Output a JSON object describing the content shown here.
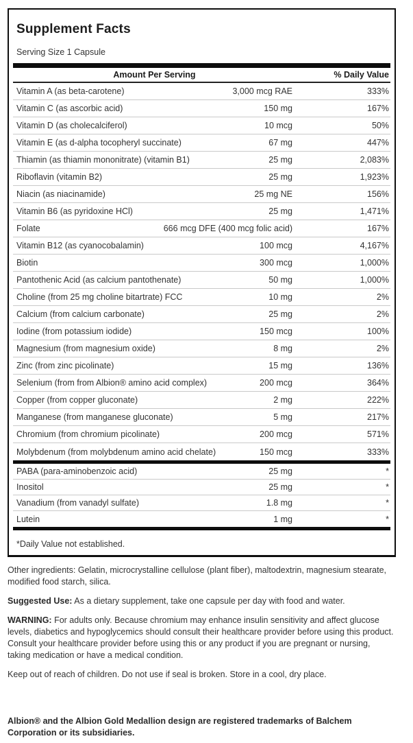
{
  "panel": {
    "title": "Supplement Facts",
    "serving_size": "Serving Size 1 Capsule",
    "columns": {
      "amount": "Amount Per Serving",
      "dv": "% Daily Value"
    },
    "rows": [
      {
        "label": "Vitamin A (as beta-carotene)",
        "amount": "3,000 mcg RAE",
        "dv": "333%"
      },
      {
        "label": "Vitamin C (as ascorbic acid)",
        "amount": "150 mg",
        "dv": "167%"
      },
      {
        "label": "Vitamin D (as cholecalciferol)",
        "amount": "10 mcg",
        "dv": "50%"
      },
      {
        "label": "Vitamin E (as d-alpha tocopheryl succinate)",
        "amount": "67 mg",
        "dv": "447%"
      },
      {
        "label": "Thiamin (as thiamin mononitrate) (vitamin B1)",
        "amount": "25 mg",
        "dv": "2,083%"
      },
      {
        "label": "Riboflavin (vitamin B2)",
        "amount": "25 mg",
        "dv": "1,923%"
      },
      {
        "label": "Niacin (as niacinamide)",
        "amount": "25 mg NE",
        "dv": "156%"
      },
      {
        "label": "Vitamin B6 (as pyridoxine HCl)",
        "amount": "25 mg",
        "dv": "1,471%"
      },
      {
        "label": "Folate",
        "amount": "666 mcg DFE (400 mcg folic acid)",
        "dv": "167%"
      },
      {
        "label": "Vitamin B12 (as cyanocobalamin)",
        "amount": "100 mcg",
        "dv": "4,167%"
      },
      {
        "label": "Biotin",
        "amount": "300 mcg",
        "dv": "1,000%"
      },
      {
        "label": "Pantothenic Acid (as calcium pantothenate)",
        "amount": "50 mg",
        "dv": "1,000%"
      },
      {
        "label": "Choline (from 25 mg choline bitartrate) FCC",
        "amount": "10 mg",
        "dv": "2%"
      },
      {
        "label": "Calcium (from calcium carbonate)",
        "amount": "25 mg",
        "dv": "2%"
      },
      {
        "label": "Iodine (from potassium iodide)",
        "amount": "150 mcg",
        "dv": "100%"
      },
      {
        "label": "Magnesium (from magnesium oxide)",
        "amount": "8 mg",
        "dv": "2%"
      },
      {
        "label": "Zinc (from zinc picolinate)",
        "amount": "15 mg",
        "dv": "136%"
      },
      {
        "label": "Selenium (from from Albion® amino acid complex)",
        "amount": "200 mcg",
        "dv": "364%"
      },
      {
        "label": "Copper (from copper gluconate)",
        "amount": "2 mg",
        "dv": "222%"
      },
      {
        "label": "Manganese (from manganese gluconate)",
        "amount": "5 mg",
        "dv": "217%"
      },
      {
        "label": "Chromium (from chromium picolinate)",
        "amount": "200 mcg",
        "dv": "571%"
      },
      {
        "label": "Molybdenum (from molybdenum amino acid chelate)",
        "amount": "150 mcg",
        "dv": "333%"
      }
    ],
    "sub_rows": [
      {
        "label": "PABA (para-aminobenzoic acid)",
        "amount": "25 mg",
        "dv": "*"
      },
      {
        "label": "Inositol",
        "amount": "25 mg",
        "dv": "*"
      },
      {
        "label": "Vanadium (from vanadyl sulfate)",
        "amount": "1.8 mg",
        "dv": "*"
      },
      {
        "label": "Lutein",
        "amount": "1 mg",
        "dv": "*"
      }
    ],
    "footnote": "*Daily Value not established."
  },
  "footer": {
    "other_ingredients": "Other ingredients: Gelatin, microcrystalline cellulose (plant fiber), maltodextrin, magnesium stearate, modified food starch, silica.",
    "suggested_use": {
      "label": "Suggested Use:",
      "text": "As a dietary supplement, take one capsule per day with food and water."
    },
    "warning": {
      "label": "WARNING:",
      "text": "For adults only. Because chromium may enhance insulin sensitivity and affect glucose levels, diabetics and hypoglycemics should consult their healthcare provider before using this product. Consult your healthcare provider before using this or any product if you are pregnant or nursing, taking medication or have a medical condition."
    },
    "storage": "Keep out of reach of children. Do not use if seal is broken. Store in a cool, dry place.",
    "trademark": "Albion® and the Albion Gold Medallion design are registered trademarks of Balchem Corporation or its subsidiaries."
  },
  "colors": {
    "bar": "#0d0d0d",
    "separator": "#c9c9c9",
    "text": "#2b2b2b"
  }
}
